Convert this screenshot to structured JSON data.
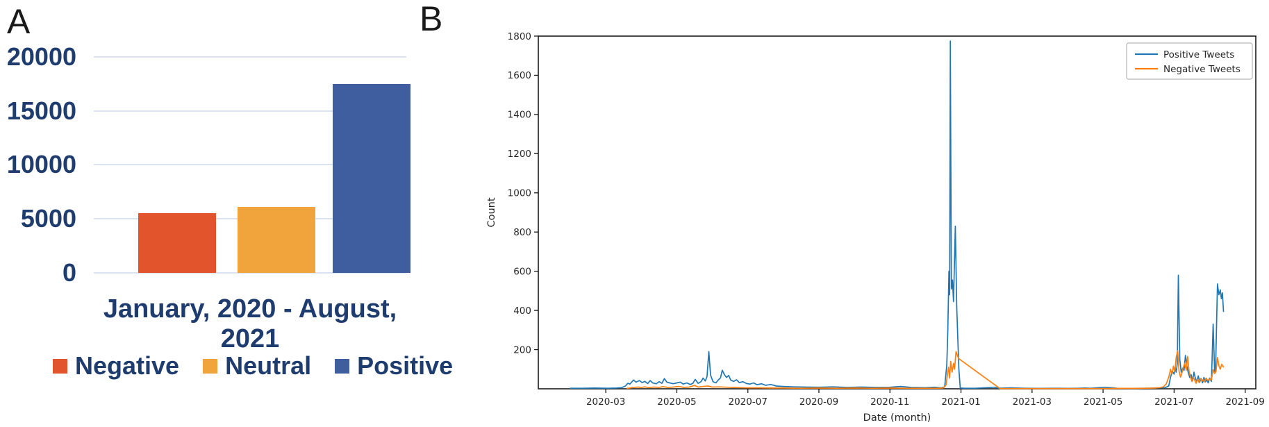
{
  "figure": {
    "background": "#ffffff",
    "panel_a_letter": "A",
    "panel_b_letter": "B"
  },
  "chart_data": [
    {
      "id": "sentiment-bar-chart",
      "panel_label": "A",
      "type": "bar",
      "title": "",
      "xlabel": "January, 2020 - August, 2021",
      "ylabel": "",
      "categories": [
        "Negative",
        "Neutral",
        "Positive"
      ],
      "values": [
        5500,
        6100,
        17500
      ],
      "bar_colors": [
        "#e2542b",
        "#f1a33c",
        "#3f5e9f"
      ],
      "y_tick_labels": [
        "0",
        "5000",
        "10000",
        "15000",
        "20000"
      ],
      "y_tick_values": [
        0,
        5000,
        10000,
        15000,
        20000
      ],
      "ylim": [
        0,
        20800
      ],
      "grid": true,
      "gridline_color": "#dbe3f3",
      "text_color": "#1e3c6e",
      "legend_position": "bottom",
      "legend": [
        {
          "label": "Negative",
          "color": "#e2542b"
        },
        {
          "label": "Neutral",
          "color": "#f1a33c"
        },
        {
          "label": "Positive",
          "color": "#3f5e9f"
        }
      ]
    },
    {
      "id": "tweet-count-timeline",
      "panel_label": "B",
      "type": "line",
      "title": "",
      "xlabel": "Date (month)",
      "ylabel": "Count",
      "x_unit_note": "x = months since 2020-01 (2 = 2020-03)",
      "xlim": [
        0.1,
        20.3
      ],
      "ylim": [
        0,
        1800
      ],
      "y_tick_values": [
        200,
        400,
        600,
        800,
        1000,
        1200,
        1400,
        1600,
        1800
      ],
      "x_ticks": [
        {
          "m": 2,
          "label": "2020-03"
        },
        {
          "m": 4,
          "label": "2020-05"
        },
        {
          "m": 6,
          "label": "2020-07"
        },
        {
          "m": 8,
          "label": "2020-09"
        },
        {
          "m": 10,
          "label": "2020-11"
        },
        {
          "m": 12,
          "label": "2021-01"
        },
        {
          "m": 14,
          "label": "2021-03"
        },
        {
          "m": 16,
          "label": "2021-05"
        },
        {
          "m": 18,
          "label": "2021-07"
        },
        {
          "m": 20,
          "label": "2021-09"
        }
      ],
      "grid": false,
      "spine_color": "#1a1a1a",
      "legend_position": "upper right",
      "series": [
        {
          "name": "Positive Tweets",
          "color": "#1f77b4",
          "points": [
            [
              1.0,
              3
            ],
            [
              1.35,
              3
            ],
            [
              1.7,
              4
            ],
            [
              2.05,
              3
            ],
            [
              2.3,
              4
            ],
            [
              2.45,
              6
            ],
            [
              2.55,
              14
            ],
            [
              2.62,
              28
            ],
            [
              2.68,
              24
            ],
            [
              2.78,
              45
            ],
            [
              2.85,
              34
            ],
            [
              2.95,
              42
            ],
            [
              3.02,
              32
            ],
            [
              3.1,
              38
            ],
            [
              3.18,
              27
            ],
            [
              3.25,
              42
            ],
            [
              3.32,
              30
            ],
            [
              3.42,
              26
            ],
            [
              3.5,
              36
            ],
            [
              3.58,
              28
            ],
            [
              3.65,
              52
            ],
            [
              3.72,
              34
            ],
            [
              3.8,
              30
            ],
            [
              3.9,
              26
            ],
            [
              4.0,
              30
            ],
            [
              4.1,
              34
            ],
            [
              4.18,
              24
            ],
            [
              4.28,
              30
            ],
            [
              4.38,
              22
            ],
            [
              4.45,
              28
            ],
            [
              4.52,
              48
            ],
            [
              4.6,
              28
            ],
            [
              4.68,
              36
            ],
            [
              4.74,
              55
            ],
            [
              4.8,
              40
            ],
            [
              4.85,
              62
            ],
            [
              4.9,
              190
            ],
            [
              4.95,
              70
            ],
            [
              5.02,
              36
            ],
            [
              5.1,
              30
            ],
            [
              5.17,
              46
            ],
            [
              5.23,
              56
            ],
            [
              5.28,
              95
            ],
            [
              5.34,
              72
            ],
            [
              5.4,
              58
            ],
            [
              5.46,
              68
            ],
            [
              5.52,
              44
            ],
            [
              5.6,
              38
            ],
            [
              5.68,
              46
            ],
            [
              5.76,
              32
            ],
            [
              5.86,
              36
            ],
            [
              5.96,
              27
            ],
            [
              6.06,
              24
            ],
            [
              6.16,
              30
            ],
            [
              6.26,
              21
            ],
            [
              6.38,
              26
            ],
            [
              6.5,
              18
            ],
            [
              6.65,
              22
            ],
            [
              6.8,
              14
            ],
            [
              7.0,
              12
            ],
            [
              7.3,
              10
            ],
            [
              7.6,
              9
            ],
            [
              8.0,
              8
            ],
            [
              8.4,
              10
            ],
            [
              8.8,
              7
            ],
            [
              9.2,
              9
            ],
            [
              9.6,
              7
            ],
            [
              10.0,
              8
            ],
            [
              10.3,
              12
            ],
            [
              10.6,
              7
            ],
            [
              11.0,
              6
            ],
            [
              11.25,
              8
            ],
            [
              11.45,
              5
            ],
            [
              11.54,
              10
            ],
            [
              11.6,
              120
            ],
            [
              11.63,
              300
            ],
            [
              11.66,
              600
            ],
            [
              11.68,
              480
            ],
            [
              11.7,
              1775
            ],
            [
              11.73,
              510
            ],
            [
              11.76,
              555
            ],
            [
              11.79,
              445
            ],
            [
              11.84,
              830
            ],
            [
              11.88,
              420
            ],
            [
              11.94,
              100
            ],
            [
              11.98,
              4
            ],
            [
              12.1,
              3
            ],
            [
              12.4,
              3
            ],
            [
              12.65,
              5
            ],
            [
              12.95,
              8
            ],
            [
              13.05,
              3
            ],
            [
              13.4,
              5
            ],
            [
              13.8,
              3
            ],
            [
              14.2,
              2
            ],
            [
              14.6,
              3
            ],
            [
              15.0,
              2
            ],
            [
              15.3,
              3
            ],
            [
              15.5,
              4
            ],
            [
              15.65,
              3
            ],
            [
              16.05,
              8
            ],
            [
              16.4,
              3
            ],
            [
              16.8,
              2
            ],
            [
              17.2,
              3
            ],
            [
              17.5,
              4
            ],
            [
              17.75,
              6
            ],
            [
              17.85,
              15
            ],
            [
              17.9,
              60
            ],
            [
              17.95,
              90
            ],
            [
              18.0,
              75
            ],
            [
              18.03,
              110
            ],
            [
              18.06,
              85
            ],
            [
              18.09,
              130
            ],
            [
              18.12,
              580
            ],
            [
              18.16,
              150
            ],
            [
              18.2,
              85
            ],
            [
              18.24,
              105
            ],
            [
              18.28,
              95
            ],
            [
              18.32,
              170
            ],
            [
              18.36,
              115
            ],
            [
              18.4,
              82
            ],
            [
              18.44,
              58
            ],
            [
              18.48,
              72
            ],
            [
              18.52,
              42
            ],
            [
              18.56,
              85
            ],
            [
              18.6,
              52
            ],
            [
              18.64,
              38
            ],
            [
              18.68,
              66
            ],
            [
              18.72,
              34
            ],
            [
              18.76,
              52
            ],
            [
              18.8,
              30
            ],
            [
              18.84,
              58
            ],
            [
              18.88,
              35
            ],
            [
              18.92,
              45
            ],
            [
              18.96,
              30
            ],
            [
              19.0,
              55
            ],
            [
              19.05,
              38
            ],
            [
              19.1,
              330
            ],
            [
              19.14,
              85
            ],
            [
              19.17,
              115
            ],
            [
              19.22,
              535
            ],
            [
              19.26,
              480
            ],
            [
              19.3,
              505
            ],
            [
              19.33,
              460
            ],
            [
              19.36,
              490
            ],
            [
              19.39,
              395
            ]
          ]
        },
        {
          "name": "Negative Tweets",
          "color": "#ff7f0e",
          "points": [
            [
              2.6,
              2
            ],
            [
              2.75,
              6
            ],
            [
              2.9,
              9
            ],
            [
              3.0,
              7
            ],
            [
              3.1,
              10
            ],
            [
              3.2,
              6
            ],
            [
              3.35,
              9
            ],
            [
              3.5,
              7
            ],
            [
              3.6,
              11
            ],
            [
              3.75,
              7
            ],
            [
              3.9,
              9
            ],
            [
              4.05,
              12
            ],
            [
              4.2,
              7
            ],
            [
              4.35,
              9
            ],
            [
              4.5,
              17
            ],
            [
              4.6,
              9
            ],
            [
              4.75,
              12
            ],
            [
              4.88,
              14
            ],
            [
              5.0,
              9
            ],
            [
              5.2,
              10
            ],
            [
              5.4,
              8
            ],
            [
              5.6,
              7
            ],
            [
              5.8,
              6
            ],
            [
              6.0,
              5
            ],
            [
              6.3,
              5
            ],
            [
              6.6,
              4
            ],
            [
              7.0,
              4
            ],
            [
              7.5,
              3
            ],
            [
              8.0,
              4
            ],
            [
              8.5,
              3
            ],
            [
              9.0,
              4
            ],
            [
              9.5,
              3
            ],
            [
              10.0,
              4
            ],
            [
              10.5,
              3
            ],
            [
              11.0,
              3
            ],
            [
              11.35,
              3
            ],
            [
              11.5,
              4
            ],
            [
              11.58,
              20
            ],
            [
              11.62,
              75
            ],
            [
              11.65,
              110
            ],
            [
              11.68,
              55
            ],
            [
              11.71,
              140
            ],
            [
              11.75,
              85
            ],
            [
              11.79,
              130
            ],
            [
              11.82,
              100
            ],
            [
              11.86,
              190
            ],
            [
              11.93,
              155
            ],
            [
              13.1,
              1
            ],
            [
              13.5,
              1
            ],
            [
              14.0,
              1
            ],
            [
              14.5,
              1
            ],
            [
              15.0,
              1
            ],
            [
              15.5,
              1
            ],
            [
              16.0,
              1
            ],
            [
              16.5,
              2
            ],
            [
              16.9,
              2
            ],
            [
              17.2,
              3
            ],
            [
              17.45,
              4
            ],
            [
              17.6,
              6
            ],
            [
              17.7,
              10
            ],
            [
              17.78,
              25
            ],
            [
              17.85,
              60
            ],
            [
              17.9,
              100
            ],
            [
              17.94,
              75
            ],
            [
              17.98,
              115
            ],
            [
              18.02,
              88
            ],
            [
              18.06,
              160
            ],
            [
              18.1,
              195
            ],
            [
              18.14,
              90
            ],
            [
              18.18,
              60
            ],
            [
              18.22,
              80
            ],
            [
              18.26,
              110
            ],
            [
              18.3,
              130
            ],
            [
              18.34,
              95
            ],
            [
              18.38,
              165
            ],
            [
              18.42,
              90
            ],
            [
              18.46,
              62
            ],
            [
              18.5,
              38
            ],
            [
              18.54,
              58
            ],
            [
              18.58,
              44
            ],
            [
              18.62,
              28
            ],
            [
              18.66,
              48
            ],
            [
              18.7,
              33
            ],
            [
              18.74,
              52
            ],
            [
              18.78,
              40
            ],
            [
              18.82,
              48
            ],
            [
              18.86,
              35
            ],
            [
              18.9,
              55
            ],
            [
              18.95,
              42
            ],
            [
              19.0,
              50
            ],
            [
              19.05,
              45
            ],
            [
              19.1,
              98
            ],
            [
              19.14,
              78
            ],
            [
              19.18,
              88
            ],
            [
              19.22,
              160
            ],
            [
              19.26,
              118
            ],
            [
              19.3,
              100
            ],
            [
              19.34,
              125
            ],
            [
              19.39,
              112
            ]
          ]
        }
      ]
    }
  ]
}
